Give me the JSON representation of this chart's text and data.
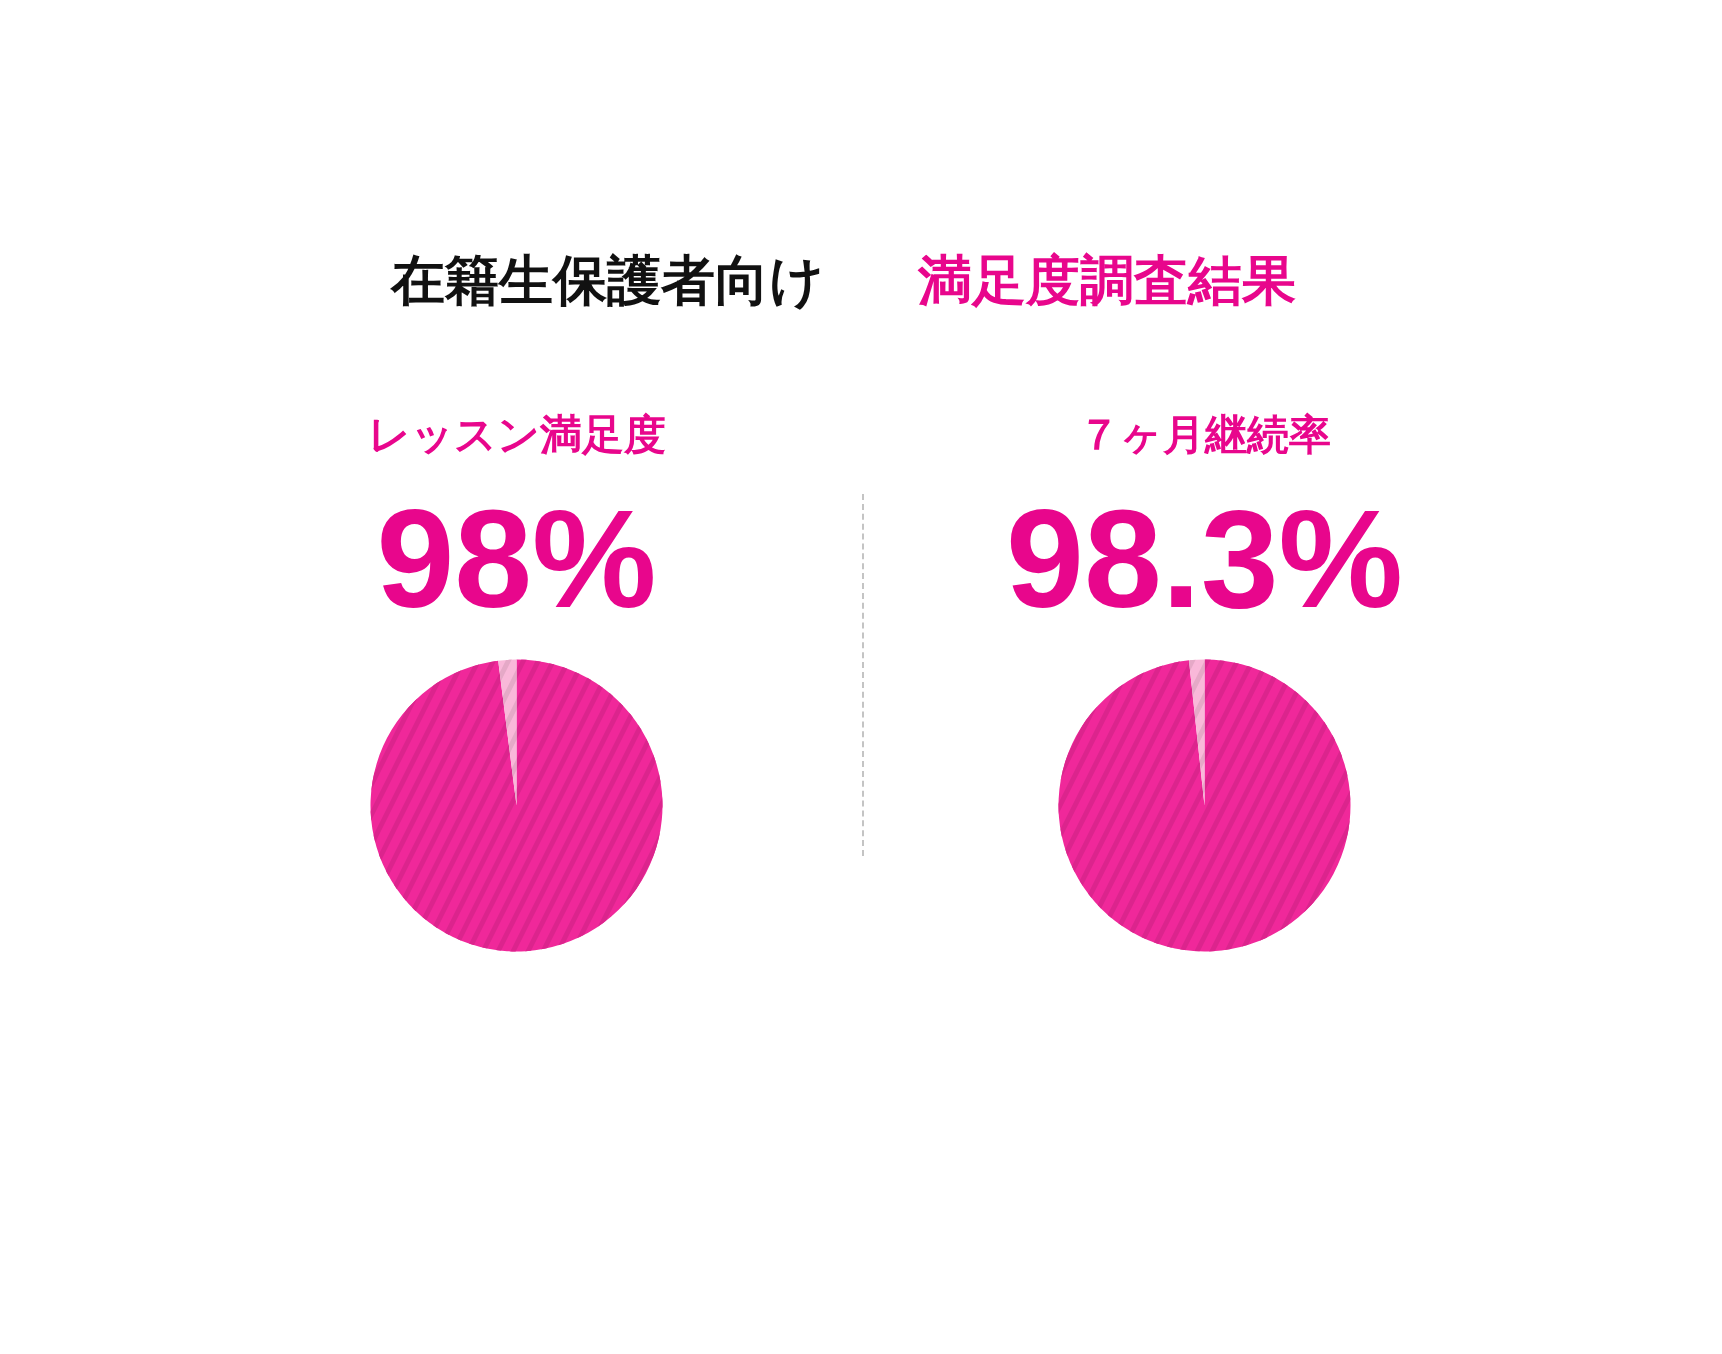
{
  "chart_data": [
    {
      "type": "other",
      "title": "在籍生保護者向け",
      "subtitle": "満足度調査結果"
    },
    {
      "type": "pie",
      "title": "レッスン満足度",
      "categories": [
        null,
        null
      ],
      "values": [
        98,
        2
      ],
      "colors": [
        "#f0289a",
        "#f9b8d9"
      ],
      "value_labels": [
        "98%",
        null
      ]
    },
    {
      "type": "pie",
      "title": "７ヶ月継続率",
      "categories": [
        null,
        null
      ],
      "values": [
        98.3,
        1.7
      ],
      "colors": [
        "#f0289a",
        "#f9b8d9"
      ],
      "value_labels": [
        "98.3%",
        null
      ]
    }
  ]
}
